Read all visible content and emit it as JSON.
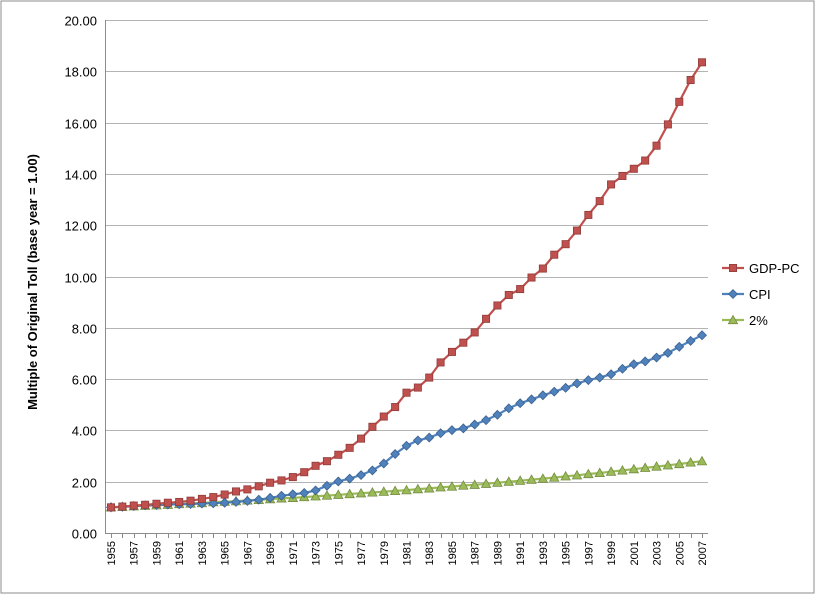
{
  "chart_data": {
    "type": "line",
    "title": "",
    "xlabel": "",
    "ylabel": "Multiple of Original Toll (base year = 1.00)",
    "ylim": [
      0,
      20
    ],
    "yticks": [
      "0.00",
      "2.00",
      "4.00",
      "6.00",
      "8.00",
      "10.00",
      "12.00",
      "14.00",
      "16.00",
      "18.00",
      "20.00"
    ],
    "xtick_labels": [
      "1955",
      "1957",
      "1959",
      "1961",
      "1963",
      "1965",
      "1967",
      "1969",
      "1971",
      "1973",
      "1975",
      "1977",
      "1979",
      "1981",
      "1983",
      "1985",
      "1987",
      "1989",
      "1991",
      "1993",
      "1995",
      "1997",
      "1999",
      "2001",
      "2003",
      "2005",
      "2007"
    ],
    "x": [
      1955,
      1956,
      1957,
      1958,
      1959,
      1960,
      1961,
      1962,
      1963,
      1964,
      1965,
      1966,
      1967,
      1968,
      1969,
      1970,
      1971,
      1972,
      1973,
      1974,
      1975,
      1976,
      1977,
      1978,
      1979,
      1980,
      1981,
      1982,
      1983,
      1984,
      1985,
      1986,
      1987,
      1988,
      1989,
      1990,
      1991,
      1992,
      1993,
      1994,
      1995,
      1996,
      1997,
      1998,
      1999,
      2000,
      2001,
      2002,
      2003,
      2004,
      2005,
      2006,
      2007
    ],
    "grid": true,
    "legend_position": "right",
    "series": [
      {
        "name": "GDP-PC",
        "color": "#c0504d",
        "marker": "square",
        "values": [
          1.0,
          1.03,
          1.07,
          1.1,
          1.14,
          1.18,
          1.21,
          1.26,
          1.33,
          1.4,
          1.5,
          1.62,
          1.7,
          1.82,
          1.96,
          2.05,
          2.18,
          2.37,
          2.62,
          2.8,
          3.05,
          3.32,
          3.68,
          4.14,
          4.54,
          4.91,
          5.47,
          5.67,
          6.06,
          6.65,
          7.06,
          7.42,
          7.82,
          8.35,
          8.87,
          9.28,
          9.51,
          9.96,
          10.31,
          10.85,
          11.26,
          11.79,
          12.4,
          12.94,
          13.59,
          13.92,
          14.2,
          14.52,
          15.1,
          15.93,
          16.81,
          17.66,
          18.35
        ]
      },
      {
        "name": "CPI",
        "color": "#4f81bd",
        "marker": "diamond",
        "values": [
          1.0,
          1.02,
          1.05,
          1.08,
          1.09,
          1.11,
          1.12,
          1.13,
          1.15,
          1.16,
          1.18,
          1.21,
          1.25,
          1.3,
          1.37,
          1.45,
          1.51,
          1.56,
          1.66,
          1.84,
          2.01,
          2.12,
          2.26,
          2.44,
          2.71,
          3.08,
          3.4,
          3.61,
          3.72,
          3.89,
          4.01,
          4.08,
          4.23,
          4.4,
          4.61,
          4.86,
          5.06,
          5.21,
          5.37,
          5.51,
          5.66,
          5.83,
          5.96,
          6.06,
          6.19,
          6.4,
          6.58,
          6.69,
          6.84,
          7.02,
          7.26,
          7.49,
          7.71
        ]
      },
      {
        "name": "2%",
        "color": "#9bbb59",
        "marker": "triangle",
        "values": [
          1.0,
          1.02,
          1.04,
          1.06,
          1.08,
          1.1,
          1.13,
          1.15,
          1.17,
          1.2,
          1.22,
          1.24,
          1.27,
          1.29,
          1.32,
          1.35,
          1.37,
          1.4,
          1.43,
          1.46,
          1.49,
          1.52,
          1.55,
          1.58,
          1.61,
          1.64,
          1.67,
          1.71,
          1.74,
          1.78,
          1.81,
          1.85,
          1.88,
          1.92,
          1.96,
          2.0,
          2.04,
          2.08,
          2.12,
          2.16,
          2.21,
          2.25,
          2.3,
          2.34,
          2.39,
          2.44,
          2.49,
          2.54,
          2.59,
          2.64,
          2.69,
          2.75,
          2.8
        ]
      }
    ]
  }
}
